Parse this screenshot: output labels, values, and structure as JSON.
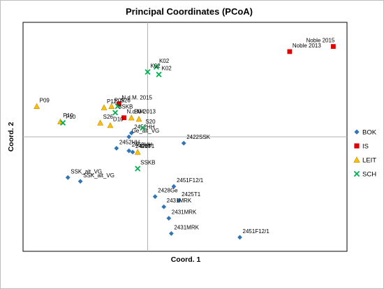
{
  "chart_data": {
    "type": "scatter",
    "title": "Principal Coordinates (PCoA)",
    "xlabel": "Coord. 1",
    "ylabel": "Coord. 2",
    "xlim": [
      -0.5,
      0.8
    ],
    "ylim": [
      -0.45,
      0.45
    ],
    "grid": false,
    "legend_position": "right",
    "series": [
      {
        "name": "BOK",
        "color": "#2e75b6",
        "marker": "diamond",
        "points": [
          {
            "label": "2452HH",
            "x": -0.065,
            "y": 0.015
          },
          {
            "label": "Ge_alt_VG",
            "x": -0.075,
            "y": 0.0
          },
          {
            "label": "2422SSK",
            "x": 0.145,
            "y": -0.025
          },
          {
            "label": "2452HH",
            "x": -0.125,
            "y": -0.045
          },
          {
            "label": "2452HH",
            "x": -0.075,
            "y": -0.055
          },
          {
            "label": "2426T1",
            "x": -0.06,
            "y": -0.06
          },
          {
            "label": "SSK_alt_VG",
            "x": -0.32,
            "y": -0.16
          },
          {
            "label": "SSK_alt_VG",
            "x": -0.27,
            "y": -0.175
          },
          {
            "label": "2451F12/1",
            "x": 0.105,
            "y": -0.195
          },
          {
            "label": "2428Ge",
            "x": 0.03,
            "y": -0.235
          },
          {
            "label": "2425T1",
            "x": 0.125,
            "y": -0.25
          },
          {
            "label": "2431MRK",
            "x": 0.065,
            "y": -0.275
          },
          {
            "label": "2431MRK",
            "x": 0.085,
            "y": -0.32
          },
          {
            "label": "2431MRK",
            "x": 0.095,
            "y": -0.38
          },
          {
            "label": "2451F12/1",
            "x": 0.37,
            "y": -0.395
          }
        ]
      },
      {
        "name": "IS",
        "color": "#e00000",
        "marker": "square",
        "points": [
          {
            "label": "Noble 2013",
            "x": 0.57,
            "y": 0.335
          },
          {
            "label": "Noble 2015",
            "x": 0.745,
            "y": 0.355
          },
          {
            "label": "N.d.M. 2015",
            "x": -0.115,
            "y": 0.13
          },
          {
            "label": "N.d.M 2013",
            "x": -0.095,
            "y": 0.075
          }
        ]
      },
      {
        "name": "LEIT",
        "color": "#ffc000",
        "marker": "triangle",
        "points": [
          {
            "label": "P09",
            "x": -0.445,
            "y": 0.12
          },
          {
            "label": "P12",
            "x": -0.175,
            "y": 0.115
          },
          {
            "label": "P09",
            "x": -0.145,
            "y": 0.12
          },
          {
            "label": "P10",
            "x": -0.35,
            "y": 0.06
          },
          {
            "label": "S26",
            "x": -0.19,
            "y": 0.055
          },
          {
            "label": "D10",
            "x": -0.15,
            "y": 0.045
          },
          {
            "label": "B04",
            "x": -0.065,
            "y": 0.075
          },
          {
            "label": "",
            "x": -0.035,
            "y": 0.07
          },
          {
            "label": "D10",
            "x": -0.04,
            "y": -0.06
          }
        ]
      },
      {
        "name": "SCH",
        "color": "#00b050",
        "marker": "x",
        "points": [
          {
            "label": "K02",
            "x": 0.035,
            "y": 0.275
          },
          {
            "label": "K02",
            "x": 0.0,
            "y": 0.255
          },
          {
            "label": "K02",
            "x": 0.045,
            "y": 0.245
          },
          {
            "label": "S26",
            "x": -0.12,
            "y": 0.12
          },
          {
            "label": "SSKB",
            "x": -0.13,
            "y": 0.095
          },
          {
            "label": "P10",
            "x": -0.34,
            "y": 0.055
          },
          {
            "label": "S20",
            "x": -0.02,
            "y": 0.035
          },
          {
            "label": "SSKB",
            "x": -0.04,
            "y": -0.125
          }
        ]
      }
    ]
  }
}
